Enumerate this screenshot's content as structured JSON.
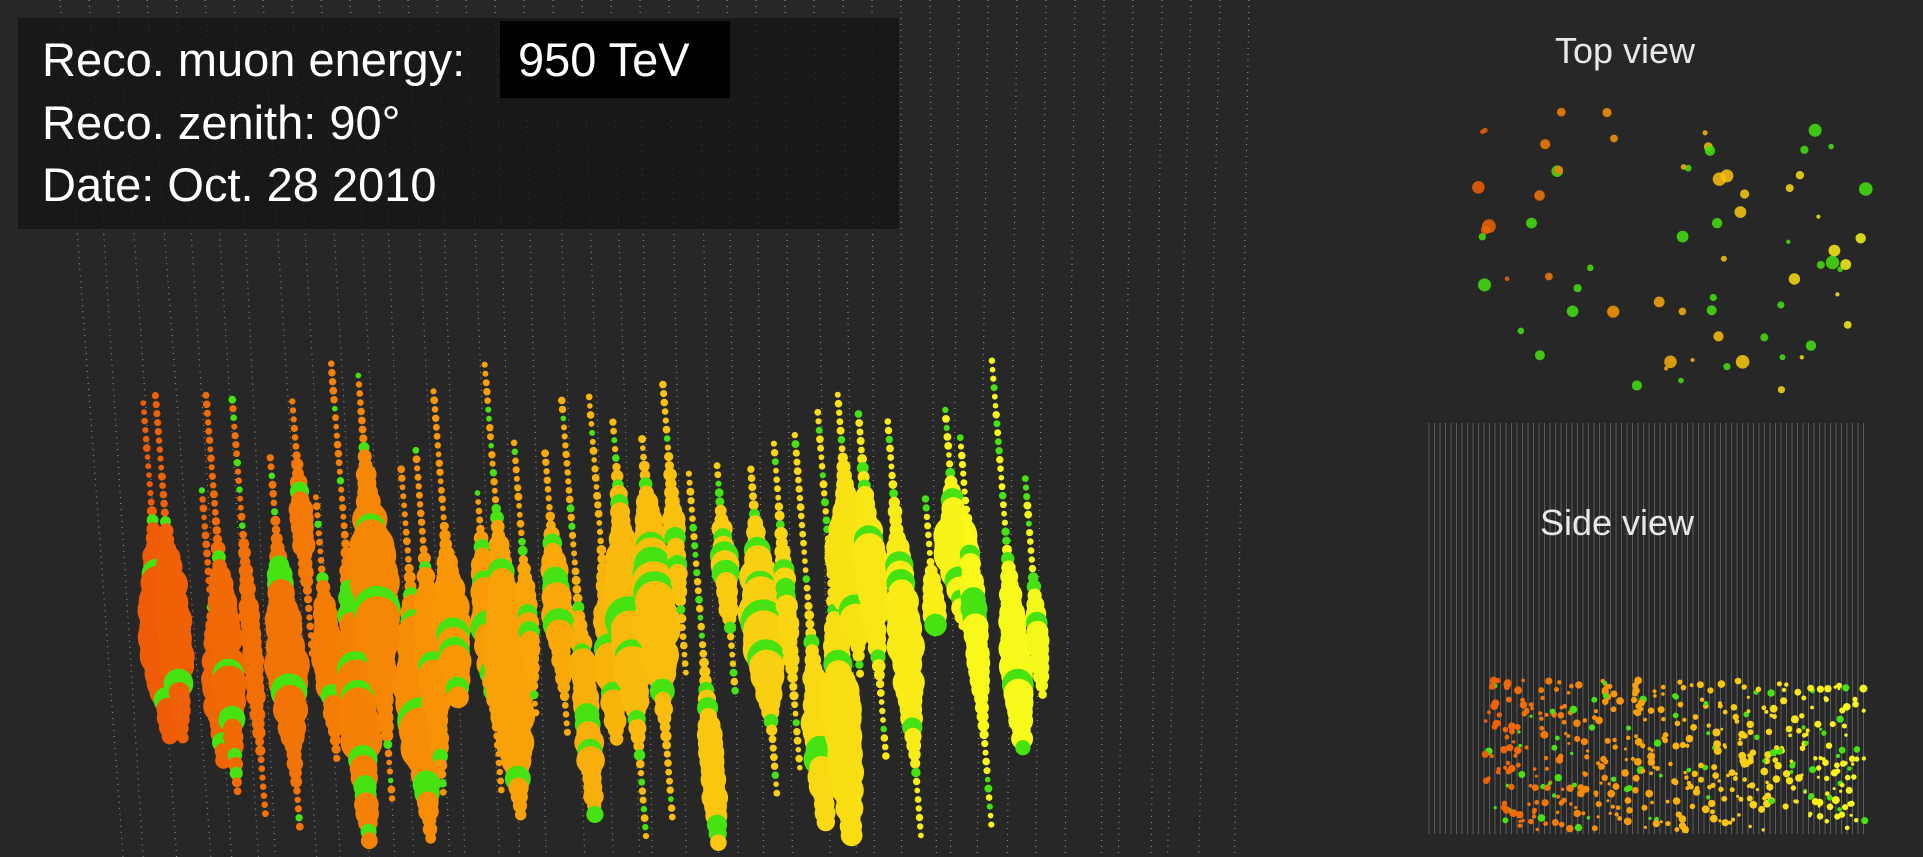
{
  "info": {
    "energy_label": "Reco. muon energy:",
    "energy_value": "950  TeV",
    "zenith": "Reco. zenith: 90°",
    "date": "Date: Oct. 28 2010"
  },
  "panels": {
    "top_view": "Top view",
    "side_view": "Side view"
  }
}
